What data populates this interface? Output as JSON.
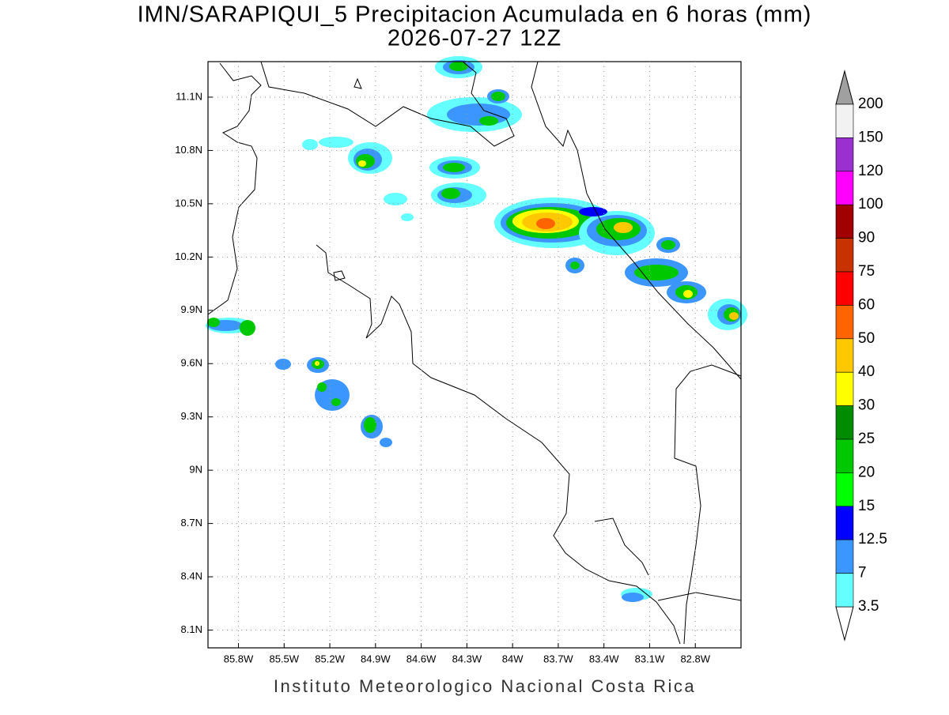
{
  "header": {
    "title": "IMN/SARAPIQUI_5 Precipitacion Acumulada en 6 horas (mm)",
    "subtitle": "2026-07-27 12Z"
  },
  "map": {
    "lon_range": [
      -86.0,
      -82.5
    ],
    "lat_range": [
      8.0,
      11.3
    ],
    "lon_ticks": [
      {
        "value": -85.8,
        "label": "85.8W"
      },
      {
        "value": -85.5,
        "label": "85.5W"
      },
      {
        "value": -85.2,
        "label": "85.2W"
      },
      {
        "value": -84.9,
        "label": "84.9W"
      },
      {
        "value": -84.6,
        "label": "84.6W"
      },
      {
        "value": -84.3,
        "label": "84.3W"
      },
      {
        "value": -84.0,
        "label": "84W"
      },
      {
        "value": -83.7,
        "label": "83.7W"
      },
      {
        "value": -83.4,
        "label": "83.4W"
      },
      {
        "value": -83.1,
        "label": "83.1W"
      },
      {
        "value": -82.8,
        "label": "82.8W"
      }
    ],
    "lat_ticks": [
      {
        "value": 11.1,
        "label": "11.1N"
      },
      {
        "value": 10.8,
        "label": "10.8N"
      },
      {
        "value": 10.5,
        "label": "10.5N"
      },
      {
        "value": 10.2,
        "label": "10.2N"
      },
      {
        "value": 9.9,
        "label": "9.9N"
      },
      {
        "value": 9.6,
        "label": "9.6N"
      },
      {
        "value": 9.3,
        "label": "9.3N"
      },
      {
        "value": 9.0,
        "label": "9N"
      },
      {
        "value": 8.7,
        "label": "8.7N"
      },
      {
        "value": 8.4,
        "label": "8.4N"
      },
      {
        "value": 8.1,
        "label": "8.1N"
      }
    ],
    "grid": true
  },
  "colorbar": {
    "levels": [
      "200",
      "150",
      "120",
      "100",
      "90",
      "75",
      "60",
      "50",
      "40",
      "30",
      "25",
      "20",
      "15",
      "12.5",
      "7",
      "3.5"
    ],
    "colors": [
      "#f2f2f2",
      "#9b30d0",
      "#ff00ff",
      "#a00000",
      "#c83200",
      "#ff0000",
      "#ff6400",
      "#ffc800",
      "#ffff00",
      "#008c00",
      "#00c800",
      "#00ff00",
      "#0000ff",
      "#3c96ff",
      "#64ffff"
    ],
    "over_color": "#a0a0a0",
    "under_color": "#ffffff"
  },
  "footer": "Instituto Meteorologico Nacional Costa Rica"
}
